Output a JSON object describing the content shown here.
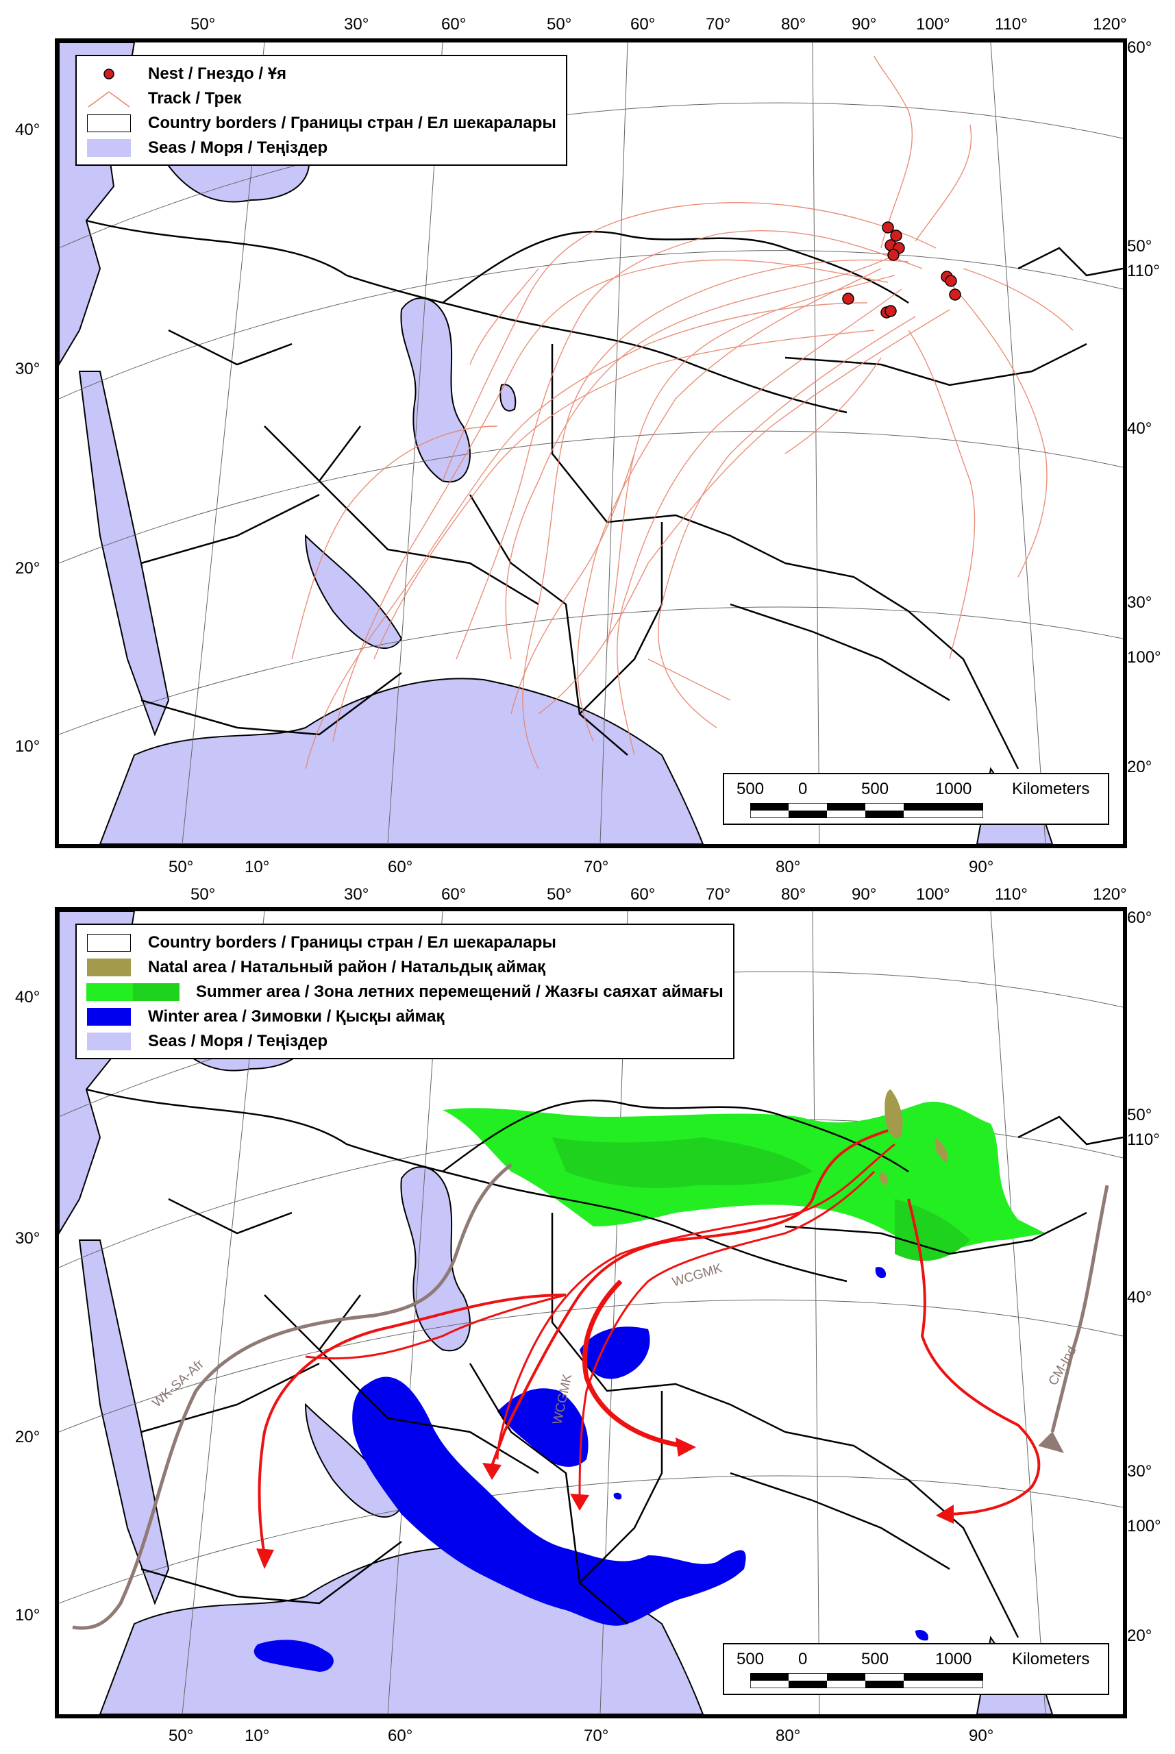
{
  "colors": {
    "sea": "#c8c6f8",
    "border": "#000000",
    "track": "#e8836a",
    "nest": "#d21e1e",
    "natal": "#a39a4c",
    "summer_light": "#22ee22",
    "summer_dark": "#1ed21e",
    "winter": "#0000ee",
    "route_red": "#ee1111",
    "route_brown": "#8f7a74"
  },
  "top_map": {
    "legend": [
      {
        "symbol": "nest-dot",
        "label": "Nest / Гнездо / Ұя"
      },
      {
        "symbol": "track-line",
        "label": "Track / Трек"
      },
      {
        "symbol": "border-box",
        "label": "Country borders / Границы стран / Ел шекаралары"
      },
      {
        "symbol": "sea-box",
        "label": "Seas / Моря / Теңіздер"
      }
    ],
    "coord_labels": {
      "top": [
        "50°",
        "30°",
        "60°",
        "50°",
        "60°",
        "70°",
        "80°",
        "90°",
        "100°",
        "110°",
        "120°"
      ],
      "left": [
        "40°",
        "30°",
        "20°",
        "10°"
      ],
      "right": [
        "60°",
        "50°",
        "110°",
        "40°",
        "30°",
        "100°",
        "20°"
      ],
      "bottom": [
        "50°",
        "10°",
        "60°",
        "70°",
        "80°",
        "90°"
      ]
    },
    "scale": {
      "labels": [
        "500",
        "0",
        "500",
        "1000"
      ],
      "unit": "Kilometers"
    }
  },
  "bottom_map": {
    "legend": [
      {
        "symbol": "border-box",
        "label": "Country borders / Границы стран / Ел шекаралары"
      },
      {
        "symbol": "natal-box",
        "label": "Natal area / Натальный район / Натальдық аймақ"
      },
      {
        "symbol": "summer-box",
        "label": "Summer area / Зона летних перемещений / Жазғы саяхат аймағы"
      },
      {
        "symbol": "winter-box",
        "label": "Winter area / Зимовки / Қысқы аймақ"
      },
      {
        "symbol": "sea-box",
        "label": "Seas / Моря / Теңіздер"
      }
    ],
    "route_labels": [
      "WCGMK",
      "WCGMK",
      "WK-SA-Afr",
      "CM-Ind"
    ],
    "coord_labels": {
      "top": [
        "50°",
        "30°",
        "60°",
        "50°",
        "60°",
        "70°",
        "80°",
        "90°",
        "100°",
        "110°",
        "120°"
      ],
      "left": [
        "40°",
        "30°",
        "20°",
        "10°"
      ],
      "right": [
        "60°",
        "50°",
        "110°",
        "40°",
        "30°",
        "100°",
        "20°"
      ],
      "bottom": [
        "50°",
        "10°",
        "60°",
        "70°",
        "80°",
        "90°"
      ]
    },
    "scale": {
      "labels": [
        "500",
        "0",
        "500",
        "1000"
      ],
      "unit": "Kilometers"
    }
  }
}
